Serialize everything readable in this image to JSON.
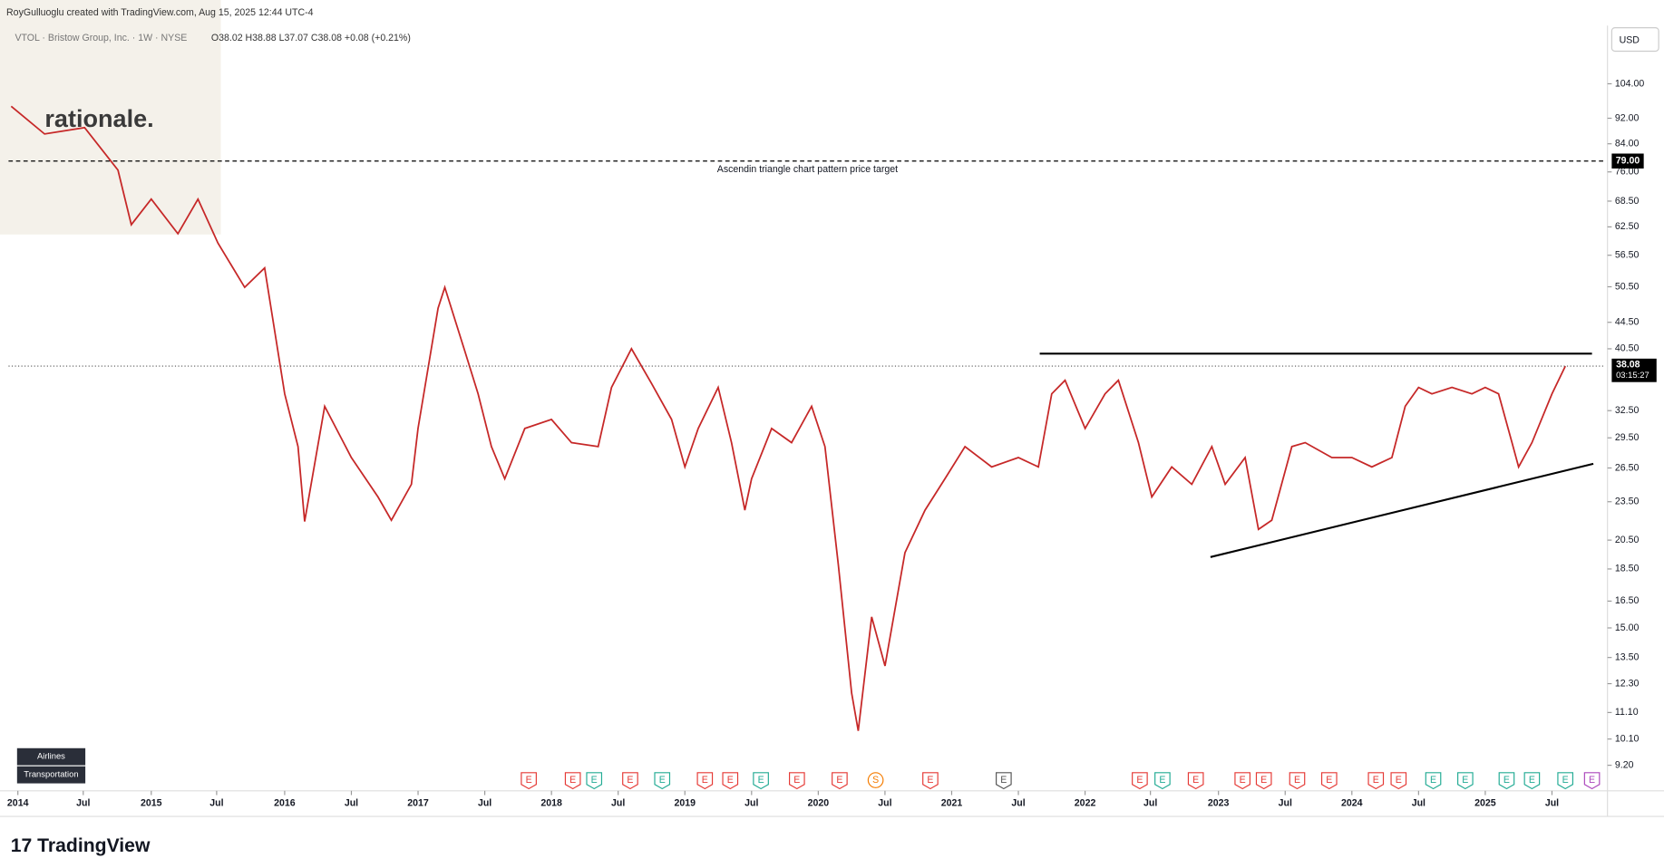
{
  "header": {
    "credit": "RoyGulluoglu created with TradingView.com, Aug 15, 2025 12:44 UTC-4",
    "symbol": "VTOL · Bristow Group, Inc. · 1W · NYSE",
    "ohlc": "O38.02 H38.88 L37.07 C38.08 +0.08 (+0.21%)",
    "currency": "USD",
    "watermark": "rationale.",
    "brand": "TradingView",
    "tags": [
      "Airlines",
      "Transportation"
    ]
  },
  "chart_data": {
    "type": "line",
    "color": "#c62828",
    "log_scale": true,
    "x": [
      2013.95,
      2014.2,
      2014.5,
      2014.75,
      2014.85,
      2015.0,
      2015.2,
      2015.35,
      2015.5,
      2015.7,
      2015.85,
      2016.0,
      2016.1,
      2016.15,
      2016.3,
      2016.5,
      2016.7,
      2016.8,
      2016.95,
      2017.0,
      2017.15,
      2017.2,
      2017.35,
      2017.45,
      2017.55,
      2017.65,
      2017.8,
      2018.0,
      2018.15,
      2018.35,
      2018.45,
      2018.6,
      2018.75,
      2018.9,
      2019.0,
      2019.1,
      2019.25,
      2019.35,
      2019.45,
      2019.5,
      2019.65,
      2019.8,
      2019.95,
      2020.05,
      2020.15,
      2020.25,
      2020.3,
      2020.4,
      2020.5,
      2020.65,
      2020.8,
      2020.95,
      2021.1,
      2021.3,
      2021.5,
      2021.65,
      2021.75,
      2021.85,
      2022.0,
      2022.15,
      2022.25,
      2022.4,
      2022.5,
      2022.65,
      2022.8,
      2022.95,
      2023.05,
      2023.2,
      2023.3,
      2023.4,
      2023.55,
      2023.65,
      2023.85,
      2024.0,
      2024.15,
      2024.3,
      2024.4,
      2024.5,
      2024.6,
      2024.75,
      2024.9,
      2025.0,
      2025.1,
      2025.2,
      2025.25,
      2025.35,
      2025.5,
      2025.6
    ],
    "values": [
      96,
      87,
      89,
      76.5,
      63,
      69,
      61,
      69,
      59,
      50.4,
      54,
      34.5,
      28.6,
      21.9,
      33,
      27.5,
      23.9,
      22,
      25,
      30.5,
      46.8,
      50.4,
      40.2,
      34.5,
      28.6,
      25.5,
      30.5,
      31.5,
      29,
      28.6,
      35.3,
      40.5,
      35.8,
      31.5,
      26.6,
      30.5,
      35.3,
      29,
      22.8,
      25.5,
      30.5,
      29,
      33,
      28.6,
      18.8,
      11.9,
      10.4,
      15.6,
      13.1,
      19.6,
      22.8,
      25.5,
      28.6,
      26.6,
      27.5,
      26.6,
      34.5,
      36.2,
      30.5,
      34.5,
      36.2,
      29,
      23.9,
      26.6,
      25,
      28.6,
      25,
      27.5,
      21.3,
      22,
      28.6,
      29,
      27.5,
      27.5,
      26.6,
      27.5,
      33,
      35.3,
      34.5,
      35.3,
      34.5,
      35.3,
      34.5,
      29,
      26.6,
      29,
      34.5,
      38.08
    ],
    "value_labels": {
      "87": "38.08"
    },
    "countdown": "03:15:27",
    "ylim": [
      8.4,
      126
    ],
    "xlim": [
      2013.93,
      2025.9
    ],
    "yticks": [
      {
        "value": 104,
        "label": "104.00"
      },
      {
        "value": 92,
        "label": "92.00"
      },
      {
        "value": 84,
        "label": "84.00"
      },
      {
        "value": 76,
        "label": "76.00"
      },
      {
        "value": 68.5,
        "label": "68.50"
      },
      {
        "value": 62.5,
        "label": "62.50"
      },
      {
        "value": 56.5,
        "label": "56.50"
      },
      {
        "value": 50.5,
        "label": "50.50"
      },
      {
        "value": 44.5,
        "label": "44.50"
      },
      {
        "value": 40.5,
        "label": "40.50"
      },
      {
        "value": 32.5,
        "label": "32.50"
      },
      {
        "value": 29.5,
        "label": "29.50"
      },
      {
        "value": 26.5,
        "label": "26.50"
      },
      {
        "value": 23.5,
        "label": "23.50"
      },
      {
        "value": 20.5,
        "label": "20.50"
      },
      {
        "value": 18.5,
        "label": "18.50"
      },
      {
        "value": 16.5,
        "label": "16.50"
      },
      {
        "value": 15,
        "label": "15.00"
      },
      {
        "value": 13.5,
        "label": "13.50"
      },
      {
        "value": 12.3,
        "label": "12.30"
      },
      {
        "value": 11.1,
        "label": "11.10"
      },
      {
        "value": 10.1,
        "label": "10.10"
      },
      {
        "value": 9.2,
        "label": "9.20"
      }
    ],
    "xticks": [
      {
        "value": 2014,
        "label": "2014"
      },
      {
        "value": 2014.49,
        "label": "Jul"
      },
      {
        "value": 2015,
        "label": "2015"
      },
      {
        "value": 2015.49,
        "label": "Jul"
      },
      {
        "value": 2016,
        "label": "2016"
      },
      {
        "value": 2016.5,
        "label": "Jul"
      },
      {
        "value": 2017,
        "label": "2017"
      },
      {
        "value": 2017.5,
        "label": "Jul"
      },
      {
        "value": 2018,
        "label": "2018"
      },
      {
        "value": 2018.5,
        "label": "Jul"
      },
      {
        "value": 2019,
        "label": "2019"
      },
      {
        "value": 2019.5,
        "label": "Jul"
      },
      {
        "value": 2020,
        "label": "2020"
      },
      {
        "value": 2020.5,
        "label": "Jul"
      },
      {
        "value": 2021,
        "label": "2021"
      },
      {
        "value": 2021.5,
        "label": "Jul"
      },
      {
        "value": 2022,
        "label": "2022"
      },
      {
        "value": 2022.49,
        "label": "Jul"
      },
      {
        "value": 2023,
        "label": "2023"
      },
      {
        "value": 2023.5,
        "label": "Jul"
      },
      {
        "value": 2024,
        "label": "2024"
      },
      {
        "value": 2024.5,
        "label": "Jul"
      },
      {
        "value": 2025,
        "label": "2025"
      },
      {
        "value": 2025.5,
        "label": "Jul"
      }
    ],
    "target": {
      "value": 79,
      "label": "79.00",
      "text": "Ascendin triangle chart pattern price target"
    },
    "drawings": [
      {
        "x": [
          2021.66,
          2025.8
        ],
        "y": [
          39.8,
          39.8
        ]
      },
      {
        "x": [
          2022.94,
          2025.81
        ],
        "y": [
          19.3,
          26.9
        ]
      }
    ],
    "events": [
      {
        "x": 2017.83,
        "label": "E",
        "color": "#e53935"
      },
      {
        "x": 2018.16,
        "label": "E",
        "color": "#e53935"
      },
      {
        "x": 2018.32,
        "label": "E",
        "color": "#22ab94"
      },
      {
        "x": 2018.59,
        "label": "E",
        "color": "#e53935"
      },
      {
        "x": 2018.83,
        "label": "E",
        "color": "#22ab94"
      },
      {
        "x": 2019.15,
        "label": "E",
        "color": "#e53935"
      },
      {
        "x": 2019.34,
        "label": "E",
        "color": "#e53935"
      },
      {
        "x": 2019.57,
        "label": "E",
        "color": "#22ab94"
      },
      {
        "x": 2019.84,
        "label": "E",
        "color": "#e53935"
      },
      {
        "x": 2020.16,
        "label": "E",
        "color": "#e53935"
      },
      {
        "x": 2020.43,
        "label": "S",
        "color": "#f57c00"
      },
      {
        "x": 2020.84,
        "label": "E",
        "color": "#e53935"
      },
      {
        "x": 2021.39,
        "label": "E",
        "color": "#555555"
      },
      {
        "x": 2022.41,
        "label": "E",
        "color": "#e53935"
      },
      {
        "x": 2022.58,
        "label": "E",
        "color": "#22ab94"
      },
      {
        "x": 2022.83,
        "label": "E",
        "color": "#e53935"
      },
      {
        "x": 2023.18,
        "label": "E",
        "color": "#e53935"
      },
      {
        "x": 2023.34,
        "label": "E",
        "color": "#e53935"
      },
      {
        "x": 2023.59,
        "label": "E",
        "color": "#e53935"
      },
      {
        "x": 2023.83,
        "label": "E",
        "color": "#e53935"
      },
      {
        "x": 2024.18,
        "label": "E",
        "color": "#e53935"
      },
      {
        "x": 2024.35,
        "label": "E",
        "color": "#e53935"
      },
      {
        "x": 2024.61,
        "label": "E",
        "color": "#22ab94"
      },
      {
        "x": 2024.85,
        "label": "E",
        "color": "#22ab94"
      },
      {
        "x": 2025.16,
        "label": "E",
        "color": "#22ab94"
      },
      {
        "x": 2025.35,
        "label": "E",
        "color": "#22ab94"
      },
      {
        "x": 2025.6,
        "label": "E",
        "color": "#22ab94"
      },
      {
        "x": 2025.8,
        "label": "E",
        "color": "#ab47bc"
      }
    ]
  }
}
